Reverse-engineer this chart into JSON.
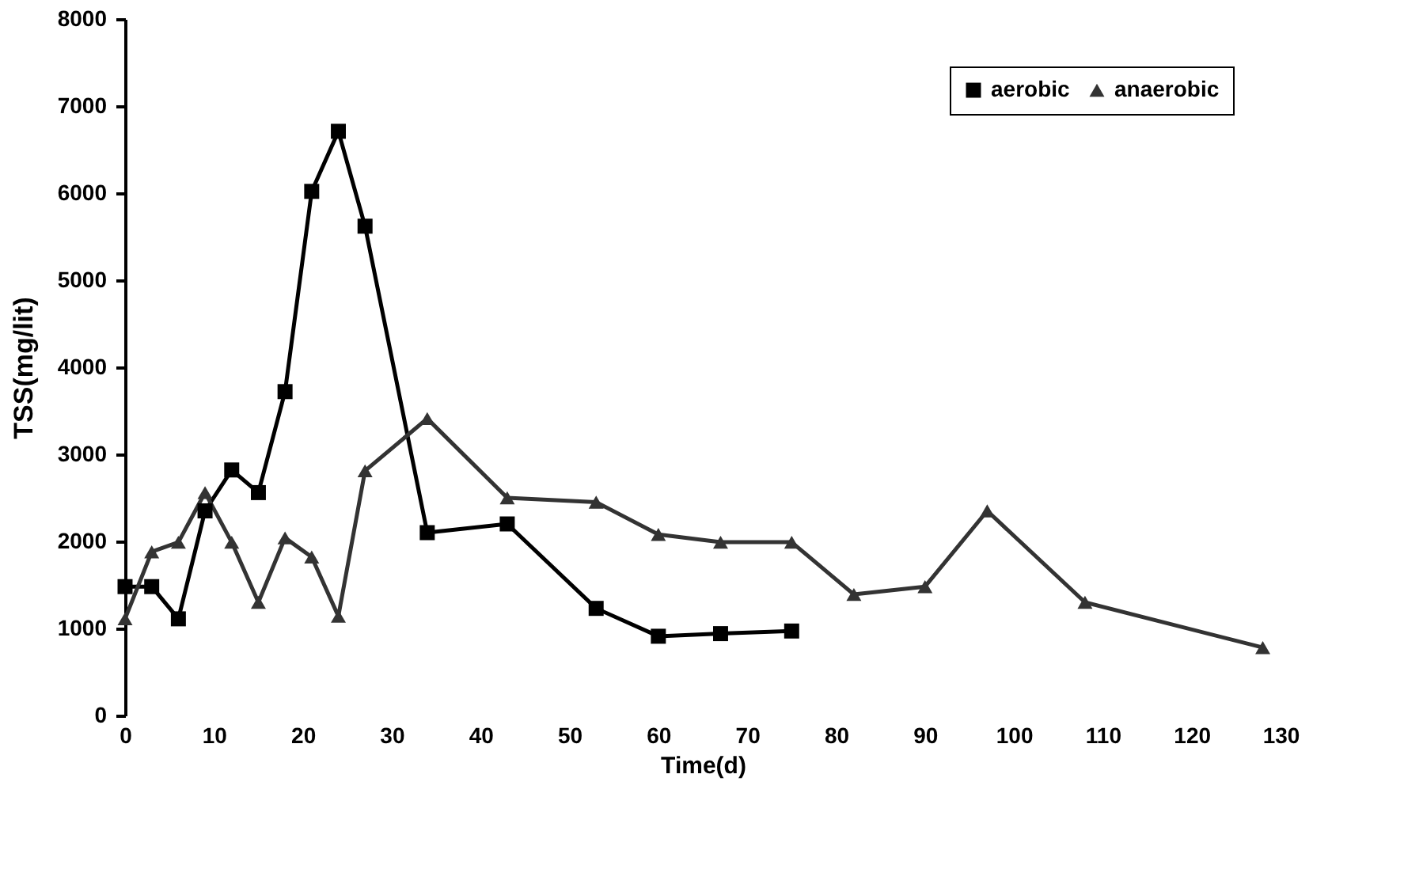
{
  "chart_data": {
    "type": "line",
    "xlabel": "Time(d)",
    "ylabel": "TSS(mg/lit)",
    "xlim": [
      0,
      130
    ],
    "xticks": [
      0,
      10,
      20,
      30,
      40,
      50,
      60,
      70,
      80,
      90,
      100,
      110,
      120,
      130
    ],
    "ylim": [
      0,
      8000
    ],
    "yticks": [
      0,
      1000,
      2000,
      3000,
      4000,
      5000,
      6000,
      7000,
      8000
    ],
    "grid": false,
    "legend": "top right",
    "line_style": "solid",
    "series": [
      {
        "name": "aerobic",
        "color": "#000000",
        "marker": "square",
        "x": [
          0,
          3,
          6,
          9,
          12,
          15,
          18,
          21,
          24,
          27,
          34,
          43,
          53,
          60,
          67,
          75
        ],
        "values": [
          1480,
          1480,
          1110,
          2350,
          2820,
          2560,
          3720,
          6020,
          6710,
          5620,
          2100,
          2200,
          1230,
          910,
          940,
          970
        ]
      },
      {
        "name": "anaerobic",
        "color": "#333333",
        "marker": "triangle",
        "x": [
          0,
          3,
          6,
          9,
          12,
          15,
          18,
          21,
          24,
          27,
          34,
          43,
          53,
          60,
          67,
          75,
          82,
          90,
          97,
          108,
          128
        ],
        "values": [
          1110,
          1880,
          1990,
          2560,
          1990,
          1300,
          2040,
          1820,
          1140,
          2810,
          3410,
          2500,
          2450,
          2080,
          1990,
          1990,
          1390,
          1480,
          2350,
          1300,
          780
        ]
      }
    ]
  }
}
